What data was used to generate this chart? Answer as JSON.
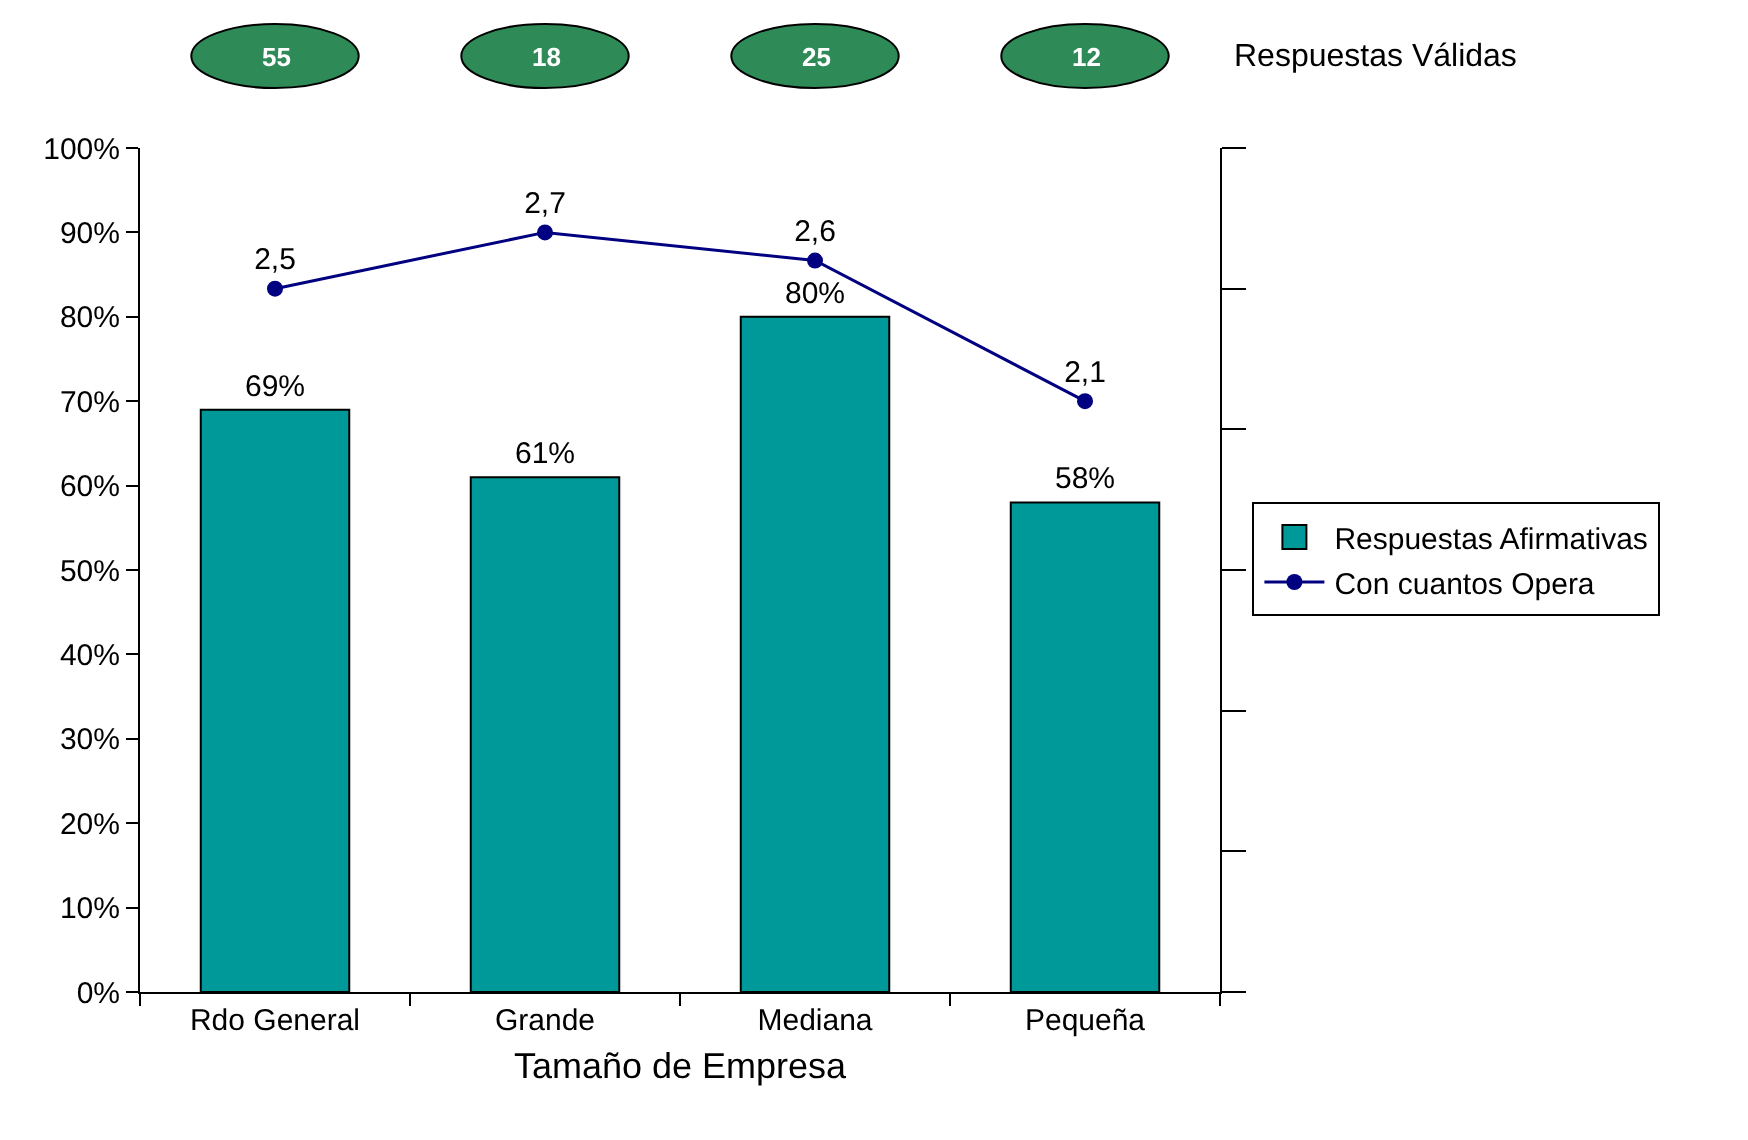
{
  "chart_data": {
    "type": "bar",
    "xlabel": "Tamaño de Empresa",
    "categories": [
      "Rdo General",
      "Grande",
      "Mediana",
      "Pequeña"
    ],
    "series": [
      {
        "name": "Respuestas Afirmativas",
        "color": "#009999",
        "values": [
          69,
          61,
          80,
          58
        ],
        "value_labels": [
          "69%",
          "61%",
          "80%",
          "58%"
        ]
      },
      {
        "name": "Con cuantos Opera",
        "type": "line",
        "axis": "y2",
        "color": "#000080",
        "marker": "circle",
        "values": [
          2.5,
          2.7,
          2.6,
          2.1
        ],
        "value_labels": [
          "2,5",
          "2,7",
          "2,6",
          "2,1"
        ]
      }
    ],
    "ylim": [
      0,
      100
    ],
    "yticks": [
      {
        "value": 0,
        "label": "0%"
      },
      {
        "value": 10,
        "label": "10%"
      },
      {
        "value": 20,
        "label": "20%"
      },
      {
        "value": 30,
        "label": "30%"
      },
      {
        "value": 40,
        "label": "40%"
      },
      {
        "value": 50,
        "label": "50%"
      },
      {
        "value": 60,
        "label": "60%"
      },
      {
        "value": 70,
        "label": "70%"
      },
      {
        "value": 80,
        "label": "80%"
      },
      {
        "value": 90,
        "label": "90%"
      },
      {
        "value": 100,
        "label": "100%"
      }
    ],
    "y2lim": [
      0,
      3
    ],
    "y2ticks": [
      {
        "value": 0,
        "label": null
      },
      {
        "value": 0.5,
        "label": null
      },
      {
        "value": 1,
        "label": null
      },
      {
        "value": 1.5,
        "label": null
      },
      {
        "value": 2,
        "label": null
      },
      {
        "value": 2.5,
        "label": null
      },
      {
        "value": 3,
        "label": null
      }
    ],
    "annotations": [
      "55",
      "18",
      "25",
      "12",
      "Respuestas Válidas"
    ],
    "legend": "right",
    "grid": false
  }
}
